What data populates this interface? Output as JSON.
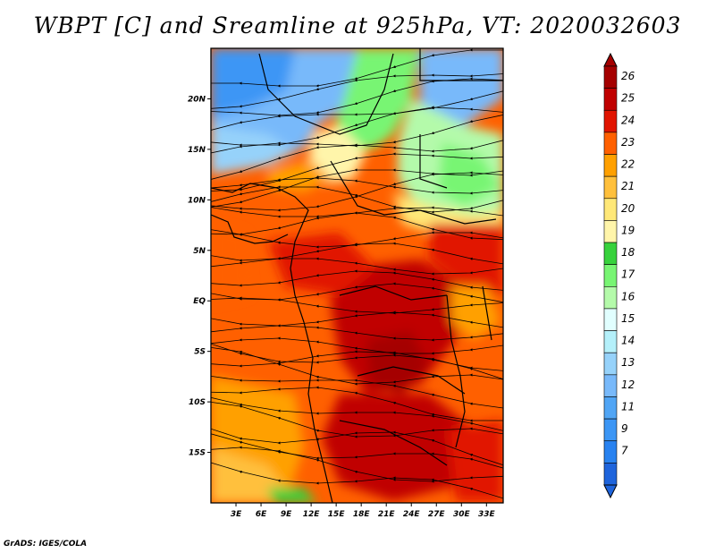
{
  "title": "WBPT [C] and Sreamline at 925hPa, VT: 2020032603",
  "footer": "GrADS: IGES/COLA",
  "map": {
    "lon_range": [
      0,
      35
    ],
    "lat_range": [
      -20,
      25
    ],
    "x_ticks": [
      "3E",
      "6E",
      "9E",
      "12E",
      "15E",
      "18E",
      "21E",
      "24E",
      "27E",
      "30E",
      "33E"
    ],
    "x_tick_values": [
      3,
      6,
      9,
      12,
      15,
      18,
      21,
      24,
      27,
      30,
      33
    ],
    "y_ticks": [
      "20N",
      "15N",
      "10N",
      "5N",
      "EQ",
      "5S",
      "10S",
      "15S"
    ],
    "y_tick_values": [
      20,
      15,
      10,
      5,
      0,
      -5,
      -10,
      -15
    ]
  },
  "colorbar": {
    "labels": [
      "7",
      "9",
      "11",
      "12",
      "13",
      "14",
      "15",
      "16",
      "17",
      "18",
      "19",
      "20",
      "21",
      "22",
      "23",
      "24",
      "25",
      "26"
    ],
    "colors": [
      "#1e64dc",
      "#2882f0",
      "#3c96f5",
      "#50a5f5",
      "#78b9fa",
      "#96d2fa",
      "#b4f0fa",
      "#e1ffff",
      "#b4faaa",
      "#78f573",
      "#37d23c",
      "#fff5aa",
      "#ffe878",
      "#ffc03c",
      "#ffa000",
      "#ff6000",
      "#e11400",
      "#c00000",
      "#a50000"
    ]
  }
}
